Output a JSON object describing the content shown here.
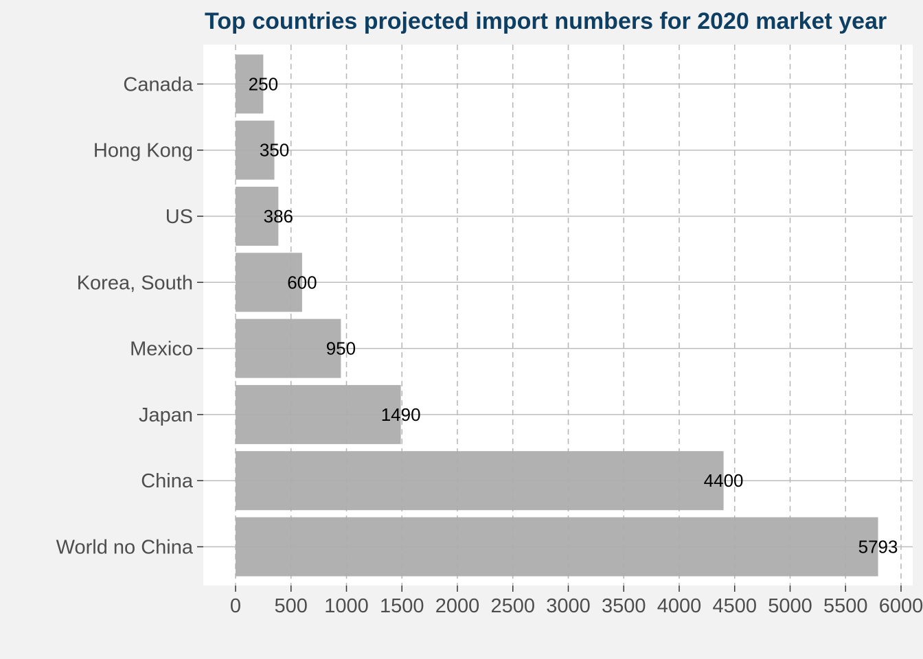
{
  "colors": {
    "background": "#f2f2f2",
    "panel": "#ffffff",
    "bar": "#adadad",
    "title": "#0e3f63",
    "grid_major_y": "#bdbdbd",
    "grid_x": "#b5b5b5"
  },
  "chart_data": {
    "type": "bar",
    "orientation": "horizontal",
    "title": "Top countries projected import numbers for 2020 market year",
    "xlabel": "",
    "ylabel": "",
    "categories": [
      "World no China",
      "China",
      "Japan",
      "Mexico",
      "Korea, South",
      "US",
      "Hong Kong",
      "Canada"
    ],
    "values": [
      5793,
      4400,
      1490,
      950,
      600,
      386,
      350,
      250
    ],
    "data_labels": [
      "5793",
      "4400",
      "1490",
      "950",
      "600",
      "386",
      "350",
      "250"
    ],
    "xlim": [
      -300,
      6000
    ],
    "x_ticks": [
      0,
      500,
      1000,
      1500,
      2000,
      2500,
      3000,
      3500,
      4000,
      4500,
      5000,
      5500,
      6000
    ],
    "x_tick_labels": [
      "0",
      "500",
      "1000",
      "1500",
      "2000",
      "2500",
      "3000",
      "3500",
      "4000",
      "4500",
      "5000",
      "5500",
      "6000"
    ],
    "grid": {
      "x": "dashed",
      "y": "solid"
    },
    "legend": "none"
  }
}
